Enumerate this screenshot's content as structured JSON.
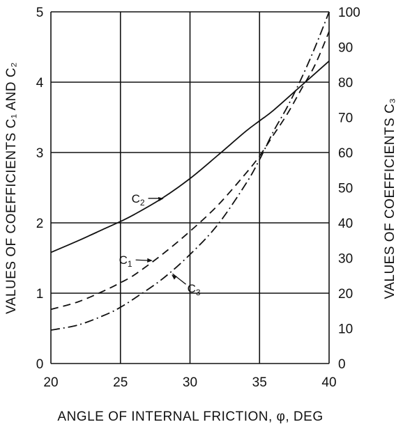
{
  "chart_data": {
    "type": "line",
    "title": "",
    "xlabel": "ANGLE OF INTERNAL FRICTION, φ, DEG",
    "ylabel_left": "VALUES OF COEFFICIENTS C₁ AND C₂",
    "ylabel_right": "VALUES OF COEFFICIENTS C₃",
    "xlim": [
      20,
      40
    ],
    "ylim_left": [
      0,
      5
    ],
    "ylim_right": [
      0,
      100
    ],
    "x_ticks": [
      "20",
      "25",
      "30",
      "35",
      "40"
    ],
    "y_ticks_left": [
      "0",
      "1",
      "2",
      "3",
      "4",
      "5"
    ],
    "y_ticks_right": [
      "0",
      "10",
      "20",
      "30",
      "40",
      "50",
      "60",
      "70",
      "80",
      "90",
      "100"
    ],
    "grid": true,
    "series": [
      {
        "name": "C2",
        "label": "C",
        "subscript": "2",
        "axis": "left",
        "style": "solid",
        "x": [
          20,
          22,
          24,
          25,
          26,
          28,
          30,
          32,
          34,
          35,
          36,
          38,
          40
        ],
        "y": [
          1.58,
          1.75,
          1.93,
          2.02,
          2.12,
          2.35,
          2.63,
          2.96,
          3.3,
          3.45,
          3.6,
          3.95,
          4.3
        ]
      },
      {
        "name": "C1",
        "label": "C",
        "subscript": "1",
        "axis": "left",
        "style": "dashed",
        "x": [
          20,
          22,
          24,
          25,
          26,
          28,
          30,
          32,
          34,
          35,
          36,
          37,
          38,
          39,
          40
        ],
        "y": [
          0.77,
          0.88,
          1.05,
          1.15,
          1.26,
          1.55,
          1.88,
          2.25,
          2.7,
          2.95,
          3.25,
          3.55,
          3.9,
          4.25,
          4.72
        ]
      },
      {
        "name": "C3",
        "label": "C",
        "subscript": "3",
        "axis": "right",
        "style": "dash-dot",
        "x": [
          20,
          22,
          24,
          25,
          26,
          28,
          30,
          32,
          34,
          35,
          36,
          37,
          38,
          39,
          40
        ],
        "y": [
          9.5,
          11.0,
          14.0,
          16.0,
          18.5,
          24.0,
          31.0,
          39.5,
          51.0,
          58.0,
          66.0,
          73.0,
          81.0,
          90.0,
          100.0
        ]
      }
    ]
  }
}
